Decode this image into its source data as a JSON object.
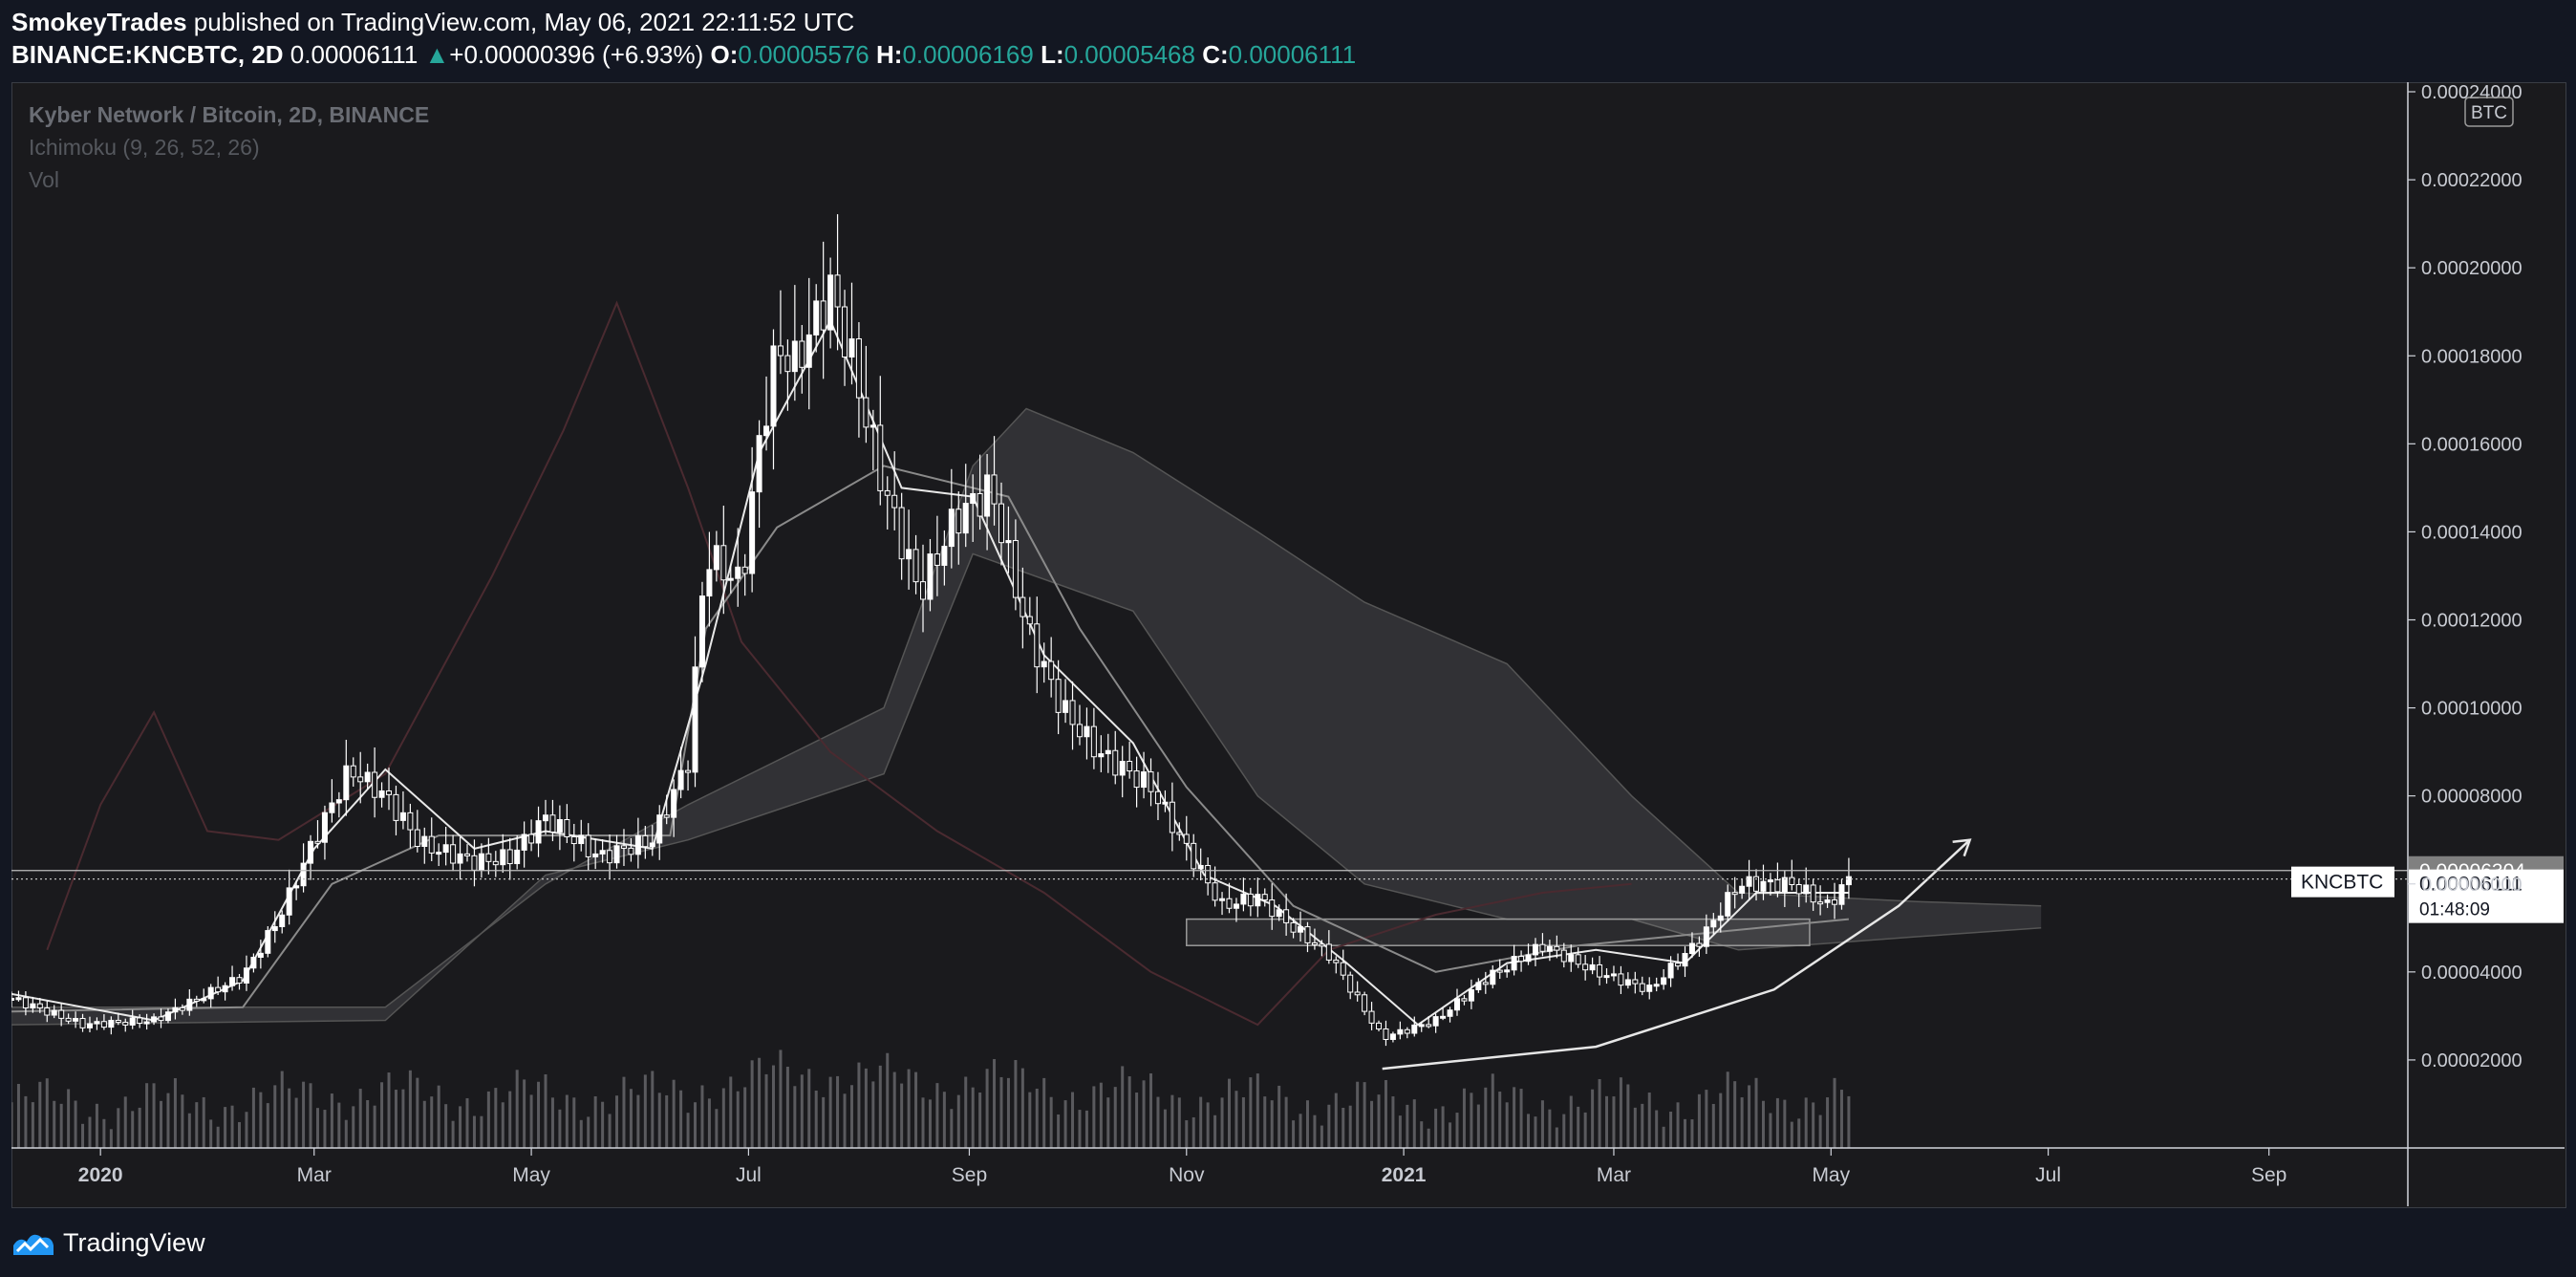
{
  "header": {
    "author": "SmokeyTrades",
    "published_text": "published on TradingView.com, May 06, 2021 22:11:52 UTC",
    "symbol": "BINANCE:KNCBTC, 2D",
    "last_price": "0.00006111",
    "change_arrow": "▲",
    "change": "+0.00000396 (+6.93%)",
    "o_label": "O:",
    "o_value": "0.00005576",
    "h_label": "H:",
    "h_value": "0.00006169",
    "l_label": "L:",
    "l_value": "0.00005468",
    "c_label": "C:",
    "c_value": "0.00006111"
  },
  "legend": {
    "title": "Kyber Network / Bitcoin, 2D, BINANCE",
    "indicator": "Ichimoku (9, 26, 52, 26)",
    "volume": "Vol"
  },
  "footer": {
    "brand": "TradingView"
  },
  "colors": {
    "background": "#131722",
    "pane": "#1a1a1d",
    "candle": "#ffffff",
    "conversion_line": "#e8e8e8",
    "base_line": "#8a8a8a",
    "lagging_span": "#4a2a30",
    "cloud": "#3a3a3d",
    "accent_green": "#26a69a"
  },
  "chart_data": {
    "type": "line",
    "title": "Kyber Network / Bitcoin, 2D, BINANCE",
    "currency_label": "BTC",
    "y_ticks": [
      "0.00002000",
      "0.00004000",
      "0.00006000",
      "0.00008000",
      "0.00010000",
      "0.00012000",
      "0.00014000",
      "0.00016000",
      "0.00018000",
      "0.00020000",
      "0.00022000",
      "0.00024000"
    ],
    "x_ticks": [
      "2020",
      "Mar",
      "May",
      "Jul",
      "Sep",
      "Nov",
      "2021",
      "Mar",
      "May",
      "Jul",
      "Sep"
    ],
    "x_tick_dates": [
      "2020-01-01",
      "2020-03-01",
      "2020-05-01",
      "2020-07-01",
      "2020-09-01",
      "2020-11-01",
      "2021-01-01",
      "2021-03-01",
      "2021-05-01",
      "2021-07-01",
      "2021-09-01"
    ],
    "ylim": [
      0,
      0.00024
    ],
    "xlim": [
      "2019-12-07",
      "2021-10-10"
    ],
    "grid": false,
    "legend_position": "top-left",
    "price_line": {
      "label": "KNCBTC",
      "value": 6.111e-05,
      "display": "0.00006111",
      "countdown": "01:48:09"
    },
    "high_line": {
      "value": 6.304e-05,
      "display": "0.00006304"
    },
    "price_series": [
      {
        "x": "2019-12-07",
        "y": 3.4e-05
      },
      {
        "x": "2019-12-27",
        "y": 2.8e-05
      },
      {
        "x": "2020-01-16",
        "y": 2.9e-05
      },
      {
        "x": "2020-01-31",
        "y": 3.5e-05
      },
      {
        "x": "2020-02-10",
        "y": 3.9e-05
      },
      {
        "x": "2020-02-20",
        "y": 5.2e-05
      },
      {
        "x": "2020-03-01",
        "y": 7e-05
      },
      {
        "x": "2020-03-11",
        "y": 8.6e-05
      },
      {
        "x": "2020-03-21",
        "y": 8e-05
      },
      {
        "x": "2020-03-31",
        "y": 6.9e-05
      },
      {
        "x": "2020-04-15",
        "y": 6.5e-05
      },
      {
        "x": "2020-04-25",
        "y": 6.6e-05
      },
      {
        "x": "2020-05-05",
        "y": 7.5e-05
      },
      {
        "x": "2020-05-20",
        "y": 6.6e-05
      },
      {
        "x": "2020-06-04",
        "y": 7e-05
      },
      {
        "x": "2020-06-14",
        "y": 8.8e-05
      },
      {
        "x": "2020-06-19",
        "y": 0.000135
      },
      {
        "x": "2020-06-29",
        "y": 0.000128
      },
      {
        "x": "2020-07-04",
        "y": 0.00016
      },
      {
        "x": "2020-07-09",
        "y": 0.000182
      },
      {
        "x": "2020-07-14",
        "y": 0.000178
      },
      {
        "x": "2020-07-24",
        "y": 0.000195
      },
      {
        "x": "2020-07-29",
        "y": 0.000182
      },
      {
        "x": "2020-08-08",
        "y": 0.00015
      },
      {
        "x": "2020-08-18",
        "y": 0.000126
      },
      {
        "x": "2020-08-28",
        "y": 0.000143
      },
      {
        "x": "2020-09-07",
        "y": 0.00015
      },
      {
        "x": "2020-09-17",
        "y": 0.000118
      },
      {
        "x": "2020-09-27",
        "y": 0.0001
      },
      {
        "x": "2020-10-07",
        "y": 9e-05
      },
      {
        "x": "2020-10-22",
        "y": 8.2e-05
      },
      {
        "x": "2020-11-01",
        "y": 6.8e-05
      },
      {
        "x": "2020-11-11",
        "y": 5.5e-05
      },
      {
        "x": "2020-11-21",
        "y": 5.7e-05
      },
      {
        "x": "2020-12-01",
        "y": 5e-05
      },
      {
        "x": "2020-12-11",
        "y": 4.4e-05
      },
      {
        "x": "2020-12-26",
        "y": 2.5e-05
      },
      {
        "x": "2021-01-10",
        "y": 2.9e-05
      },
      {
        "x": "2021-01-25",
        "y": 3.9e-05
      },
      {
        "x": "2021-02-09",
        "y": 4.6e-05
      },
      {
        "x": "2021-02-24",
        "y": 4e-05
      },
      {
        "x": "2021-03-11",
        "y": 3.6e-05
      },
      {
        "x": "2021-03-26",
        "y": 4.8e-05
      },
      {
        "x": "2021-04-05",
        "y": 6e-05
      },
      {
        "x": "2021-04-20",
        "y": 6e-05
      },
      {
        "x": "2021-04-30",
        "y": 5.5e-05
      },
      {
        "x": "2021-05-06",
        "y": 6.1e-05
      }
    ],
    "conversion_line": [
      {
        "x": "2019-12-07",
        "y": 3.5e-05
      },
      {
        "x": "2020-01-16",
        "y": 2.9e-05
      },
      {
        "x": "2020-02-10",
        "y": 3.8e-05
      },
      {
        "x": "2020-03-01",
        "y": 6.8e-05
      },
      {
        "x": "2020-03-21",
        "y": 8.6e-05
      },
      {
        "x": "2020-04-15",
        "y": 6.8e-05
      },
      {
        "x": "2020-05-05",
        "y": 7.2e-05
      },
      {
        "x": "2020-06-04",
        "y": 6.8e-05
      },
      {
        "x": "2020-06-19",
        "y": 0.00011
      },
      {
        "x": "2020-07-04",
        "y": 0.000158
      },
      {
        "x": "2020-07-24",
        "y": 0.000188
      },
      {
        "x": "2020-08-13",
        "y": 0.00015
      },
      {
        "x": "2020-09-02",
        "y": 0.000148
      },
      {
        "x": "2020-09-22",
        "y": 0.000112
      },
      {
        "x": "2020-10-17",
        "y": 9.2e-05
      },
      {
        "x": "2020-11-06",
        "y": 6.2e-05
      },
      {
        "x": "2020-11-26",
        "y": 5.5e-05
      },
      {
        "x": "2020-12-16",
        "y": 4.2e-05
      },
      {
        "x": "2021-01-05",
        "y": 2.8e-05
      },
      {
        "x": "2021-01-30",
        "y": 4.2e-05
      },
      {
        "x": "2021-02-24",
        "y": 4.5e-05
      },
      {
        "x": "2021-03-21",
        "y": 4.2e-05
      },
      {
        "x": "2021-04-10",
        "y": 5.8e-05
      },
      {
        "x": "2021-05-06",
        "y": 5.8e-05
      }
    ],
    "base_line": [
      {
        "x": "2019-12-07",
        "y": 3.1e-05
      },
      {
        "x": "2020-02-10",
        "y": 3.2e-05
      },
      {
        "x": "2020-03-06",
        "y": 6e-05
      },
      {
        "x": "2020-04-05",
        "y": 7.1e-05
      },
      {
        "x": "2020-06-09",
        "y": 7.1e-05
      },
      {
        "x": "2020-06-19",
        "y": 0.000118
      },
      {
        "x": "2020-07-09",
        "y": 0.000141
      },
      {
        "x": "2020-08-08",
        "y": 0.000155
      },
      {
        "x": "2020-09-12",
        "y": 0.000148
      },
      {
        "x": "2020-10-02",
        "y": 0.000118
      },
      {
        "x": "2020-11-01",
        "y": 8.2e-05
      },
      {
        "x": "2020-12-01",
        "y": 5.5e-05
      },
      {
        "x": "2021-01-10",
        "y": 4e-05
      },
      {
        "x": "2021-02-19",
        "y": 4.6e-05
      },
      {
        "x": "2021-05-06",
        "y": 5.2e-05
      }
    ],
    "lagging_span": [
      {
        "x": "2019-12-17",
        "y": 4.5e-05
      },
      {
        "x": "2020-01-01",
        "y": 7.8e-05
      },
      {
        "x": "2020-01-16",
        "y": 9.9e-05
      },
      {
        "x": "2020-01-31",
        "y": 7.2e-05
      },
      {
        "x": "2020-02-20",
        "y": 7e-05
      },
      {
        "x": "2020-03-21",
        "y": 8.5e-05
      },
      {
        "x": "2020-04-20",
        "y": 0.00013
      },
      {
        "x": "2020-05-10",
        "y": 0.000163
      },
      {
        "x": "2020-05-25",
        "y": 0.000192
      },
      {
        "x": "2020-06-14",
        "y": 0.00015
      },
      {
        "x": "2020-06-29",
        "y": 0.000115
      },
      {
        "x": "2020-07-24",
        "y": 9e-05
      },
      {
        "x": "2020-08-23",
        "y": 7.2e-05
      },
      {
        "x": "2020-09-22",
        "y": 5.8e-05
      },
      {
        "x": "2020-10-22",
        "y": 4e-05
      },
      {
        "x": "2020-11-21",
        "y": 2.8e-05
      },
      {
        "x": "2020-12-11",
        "y": 4.5e-05
      },
      {
        "x": "2021-01-10",
        "y": 5.3e-05
      },
      {
        "x": "2021-02-09",
        "y": 5.8e-05
      },
      {
        "x": "2021-03-06",
        "y": 6e-05
      }
    ],
    "cloud_upper": [
      {
        "x": "2019-12-07",
        "y": 3.2e-05
      },
      {
        "x": "2020-03-21",
        "y": 3.2e-05
      },
      {
        "x": "2020-05-05",
        "y": 6e-05
      },
      {
        "x": "2020-06-14",
        "y": 7.8e-05
      },
      {
        "x": "2020-08-08",
        "y": 0.0001
      },
      {
        "x": "2020-09-02",
        "y": 0.000155
      },
      {
        "x": "2020-09-17",
        "y": 0.000168
      },
      {
        "x": "2020-10-17",
        "y": 0.000158
      },
      {
        "x": "2020-11-21",
        "y": 0.00014
      },
      {
        "x": "2020-12-21",
        "y": 0.000124
      },
      {
        "x": "2021-01-30",
        "y": 0.00011
      },
      {
        "x": "2021-03-06",
        "y": 8e-05
      },
      {
        "x": "2021-04-05",
        "y": 5.8e-05
      },
      {
        "x": "2021-05-25",
        "y": 5.6e-05
      },
      {
        "x": "2021-06-29",
        "y": 5.5e-05
      }
    ],
    "cloud_lower": [
      {
        "x": "2019-12-07",
        "y": 2.8e-05
      },
      {
        "x": "2020-03-21",
        "y": 2.9e-05
      },
      {
        "x": "2020-05-05",
        "y": 6.2e-05
      },
      {
        "x": "2020-06-14",
        "y": 7e-05
      },
      {
        "x": "2020-08-08",
        "y": 8.5e-05
      },
      {
        "x": "2020-09-02",
        "y": 0.000135
      },
      {
        "x": "2020-10-17",
        "y": 0.000122
      },
      {
        "x": "2020-11-21",
        "y": 8e-05
      },
      {
        "x": "2020-12-21",
        "y": 6e-05
      },
      {
        "x": "2021-01-30",
        "y": 5.2e-05
      },
      {
        "x": "2021-03-06",
        "y": 5.2e-05
      },
      {
        "x": "2021-04-05",
        "y": 4.5e-05
      },
      {
        "x": "2021-05-25",
        "y": 4.8e-05
      },
      {
        "x": "2021-06-29",
        "y": 5e-05
      }
    ],
    "support_box": {
      "x0": "2020-11-01",
      "x1": "2021-04-25",
      "y_low": 4.6e-05,
      "y_high": 5.2e-05
    },
    "trend_arrow": [
      {
        "x": "2020-12-26",
        "y": 1.8e-05
      },
      {
        "x": "2021-02-24",
        "y": 2.3e-05
      },
      {
        "x": "2021-04-15",
        "y": 3.6e-05
      },
      {
        "x": "2021-05-20",
        "y": 5.5e-05
      },
      {
        "x": "2021-06-09",
        "y": 7e-05
      }
    ]
  }
}
